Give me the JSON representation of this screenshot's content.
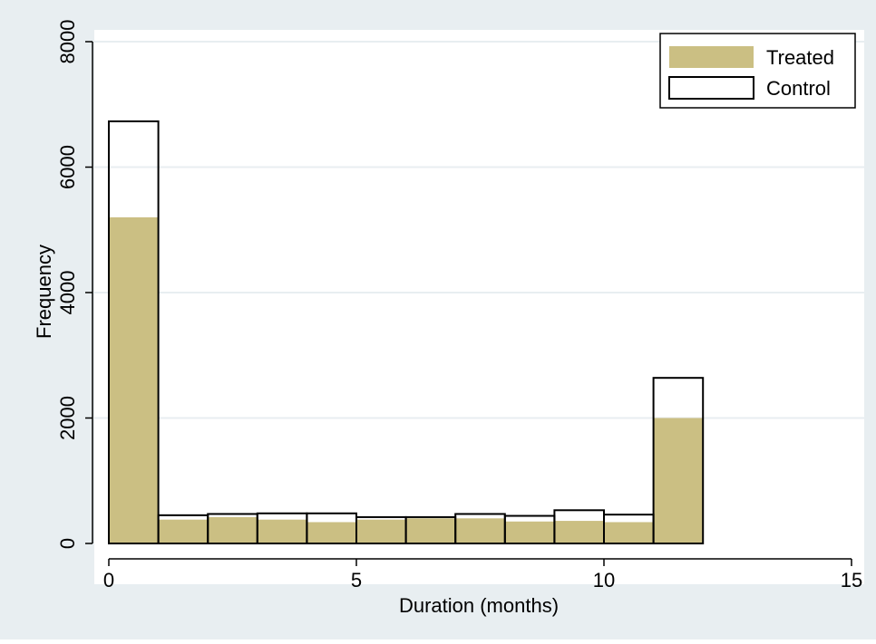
{
  "chart_data": {
    "type": "bar",
    "title": "",
    "xlabel": "Duration (months)",
    "ylabel": "Frequency",
    "xlim": [
      -0.5,
      15.3
    ],
    "ylim": [
      -150,
      8200
    ],
    "xticks": [
      0,
      5,
      10,
      15
    ],
    "yticks": [
      0,
      2000,
      4000,
      6000,
      8000
    ],
    "bin_width": 1,
    "bin_starts": [
      0,
      1,
      2,
      3,
      4,
      5,
      6,
      7,
      8,
      9,
      10,
      11
    ],
    "series": [
      {
        "name": "Treated",
        "style": "filled",
        "values": [
          5200,
          380,
          420,
          380,
          340,
          380,
          400,
          400,
          350,
          360,
          340,
          2000
        ]
      },
      {
        "name": "Control",
        "style": "outline",
        "values": [
          6730,
          450,
          470,
          480,
          480,
          420,
          420,
          470,
          440,
          530,
          460,
          2640
        ]
      }
    ],
    "grid": true,
    "legend_position": "top-right",
    "colors": {
      "background": "#e8eef1",
      "plot_background": "#ffffff",
      "grid": "#e8eef1",
      "treated_fill": "#cbbf83",
      "outline": "#000000"
    }
  }
}
